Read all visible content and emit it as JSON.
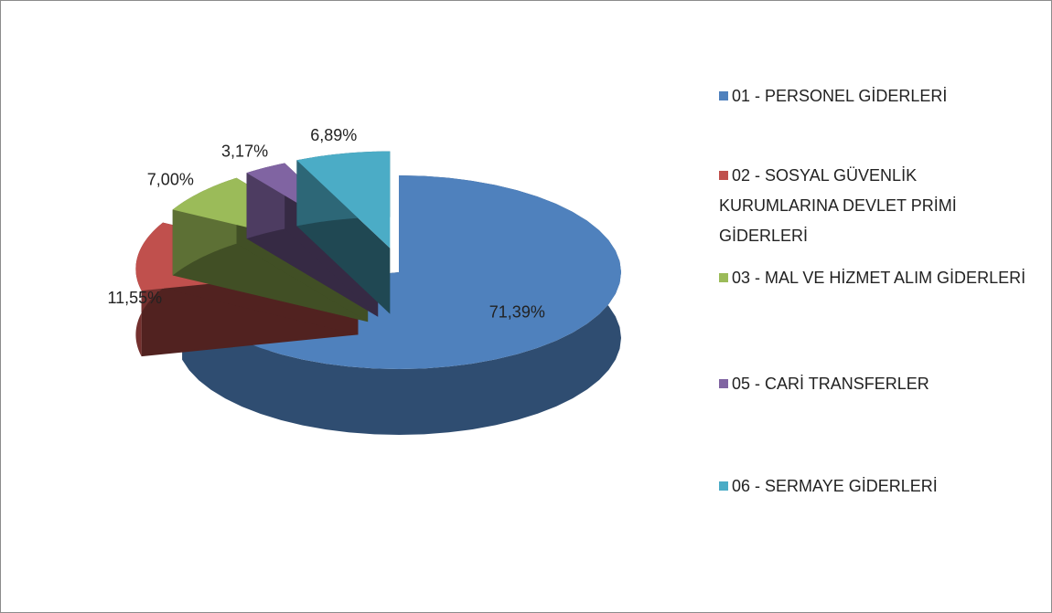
{
  "chart_data": {
    "type": "pie3d",
    "categories": [
      "01 - PERSONEL GİDERLERİ",
      "02 - SOSYAL GÜVENLİK KURUMLARINA DEVLET PRİMİ GİDERLERİ",
      "03 - MAL VE HİZMET ALIM GİDERLERİ",
      "05 - CARİ TRANSFERLER",
      "06 - SERMAYE GİDERLERİ"
    ],
    "values": [
      71.39,
      11.55,
      7.0,
      3.17,
      6.89
    ],
    "value_labels": [
      "71,39%",
      "11,55%",
      "7,00%",
      "3,17%",
      "6,89%"
    ],
    "colors": [
      "#4f81bd",
      "#c0504d",
      "#9bbb59",
      "#8064a2",
      "#4bacc6"
    ],
    "legend": "right"
  }
}
